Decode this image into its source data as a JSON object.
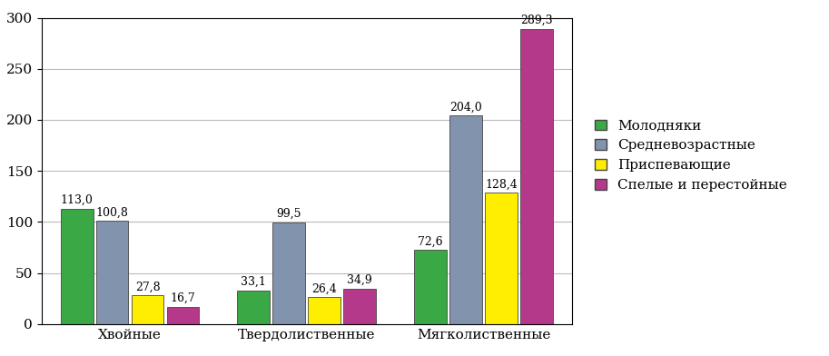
{
  "chart_data": {
    "type": "bar",
    "categories": [
      "Хвойные",
      "Твердолиственные",
      "Мягколиственные"
    ],
    "series": [
      {
        "name": "Молодняки",
        "color": "#3aa845",
        "values": [
          113.0,
          33.1,
          72.6
        ],
        "value_labels": [
          "113,0",
          "33,1",
          "72,6"
        ]
      },
      {
        "name": "Средневозрастные",
        "color": "#8293ad",
        "values": [
          100.8,
          99.5,
          204.0
        ],
        "value_labels": [
          "100,8",
          "99,5",
          "204,0"
        ]
      },
      {
        "name": "Приспевающие",
        "color": "#ffee00",
        "values": [
          27.8,
          26.4,
          128.4
        ],
        "value_labels": [
          "27,8",
          "26,4",
          "128,4"
        ]
      },
      {
        "name": "Спелые и перестойные",
        "color": "#b5398a",
        "values": [
          16.7,
          34.9,
          289.3
        ],
        "value_labels": [
          "16,7",
          "34,9",
          "289,3"
        ]
      }
    ],
    "ylim": [
      0,
      300
    ],
    "yticks": [
      0,
      50,
      100,
      150,
      200,
      250,
      300
    ],
    "grid": true,
    "legend": "right",
    "data_labels": true
  }
}
